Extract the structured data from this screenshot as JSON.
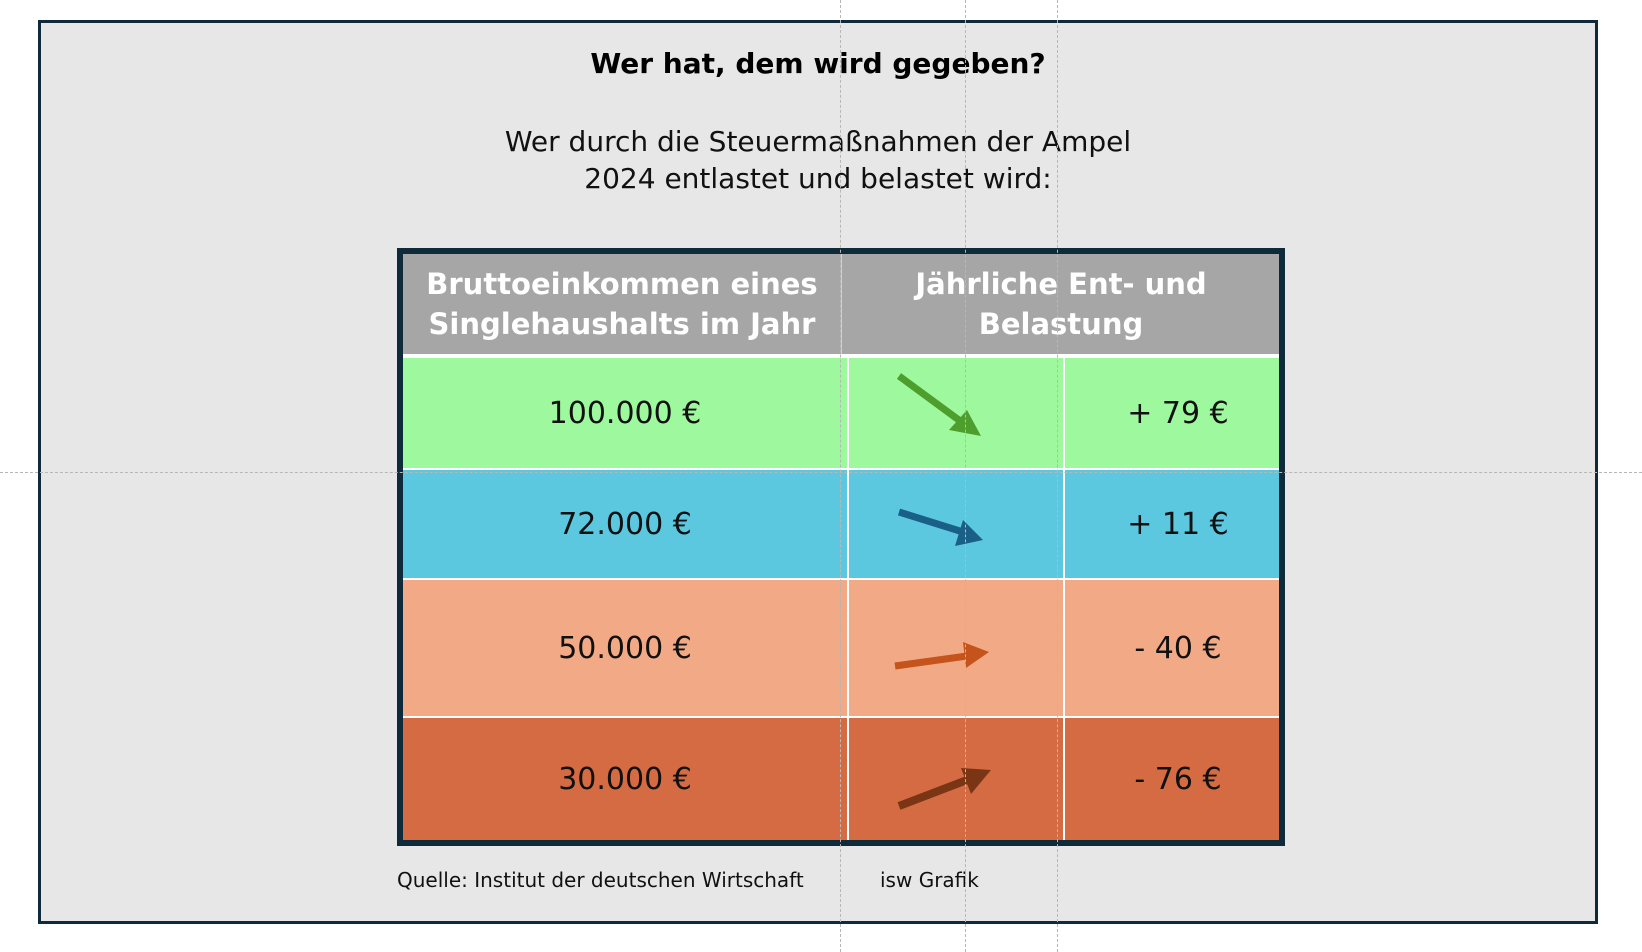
{
  "title": "Wer hat, dem wird gegeben?",
  "subtitle": {
    "line1": "Wer durch die Steuermaßnahmen der Ampel",
    "line2": "2024 entlastet und belastet wird:"
  },
  "table": {
    "header_col1": {
      "line1": "Bruttoeinkommen eines",
      "line2": "Singlehaushalts im Jahr"
    },
    "header_col2": {
      "line1": "Jährliche Ent- und",
      "line2": "Belastung"
    },
    "rows": [
      {
        "income": "100.000 €",
        "change": "+ 79 €",
        "color": "#9ef89e",
        "arrow_color": "#4e9e2d",
        "arrow_direction": "down-right"
      },
      {
        "income": "72.000 €",
        "change": "+ 11 €",
        "color": "#5bc8e0",
        "arrow_color": "#1a5f86",
        "arrow_direction": "slightly-down-right"
      },
      {
        "income": "50.000 €",
        "change": "- 40 €",
        "color": "#f2aa86",
        "arrow_color": "#c4531c",
        "arrow_direction": "slightly-up-right"
      },
      {
        "income": "30.000 €",
        "change": "- 76 €",
        "color": "#d46b42",
        "arrow_color": "#7a3514",
        "arrow_direction": "up-right"
      }
    ]
  },
  "footer": {
    "source": "Quelle: Institut der deutschen Wirtschaft",
    "credit": "isw Grafik"
  },
  "colors": {
    "slide_background": "#e7e7e7",
    "border": "#0f2a3a",
    "header_background": "#a6a6a6"
  }
}
